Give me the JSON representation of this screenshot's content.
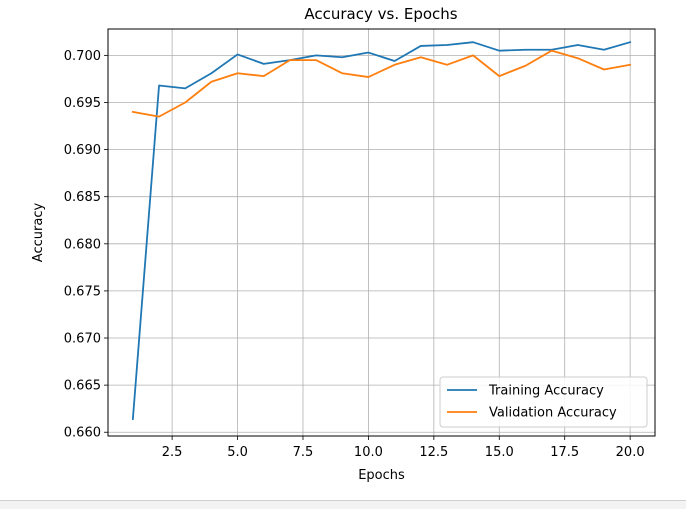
{
  "chart_data": {
    "type": "line",
    "title": "Accuracy vs. Epochs",
    "xlabel": "Epochs",
    "ylabel": "Accuracy",
    "x": [
      1,
      2,
      3,
      4,
      5,
      6,
      7,
      8,
      9,
      10,
      11,
      12,
      13,
      14,
      15,
      16,
      17,
      18,
      19,
      20
    ],
    "xlim": [
      0.05,
      20.95
    ],
    "ylim": [
      0.6596,
      0.7028
    ],
    "xticks": [
      2.5,
      5.0,
      7.5,
      10.0,
      12.5,
      15.0,
      17.5,
      20.0
    ],
    "xtick_labels": [
      "2.5",
      "5.0",
      "7.5",
      "10.0",
      "12.5",
      "15.0",
      "17.5",
      "20.0"
    ],
    "yticks": [
      0.66,
      0.665,
      0.67,
      0.675,
      0.68,
      0.685,
      0.69,
      0.695,
      0.7
    ],
    "ytick_labels": [
      "0.660",
      "0.665",
      "0.670",
      "0.675",
      "0.680",
      "0.685",
      "0.690",
      "0.695",
      "0.700"
    ],
    "grid": true,
    "legend_position": "lower-right",
    "series": [
      {
        "name": "Training Accuracy",
        "color": "#1f77b4",
        "values": [
          0.6614,
          0.6968,
          0.6965,
          0.6981,
          0.7001,
          0.6991,
          0.6995,
          0.7,
          0.6998,
          0.7003,
          0.6994,
          0.701,
          0.7011,
          0.7014,
          0.7005,
          0.7006,
          0.7006,
          0.7011,
          0.7006,
          0.7014
        ]
      },
      {
        "name": "Validation Accuracy",
        "color": "#ff7f0e",
        "values": [
          0.694,
          0.6935,
          0.695,
          0.6972,
          0.6981,
          0.6978,
          0.6995,
          0.6995,
          0.6981,
          0.6977,
          0.699,
          0.6998,
          0.699,
          0.7,
          0.6978,
          0.6989,
          0.7005,
          0.6997,
          0.6985,
          0.699
        ]
      }
    ]
  }
}
